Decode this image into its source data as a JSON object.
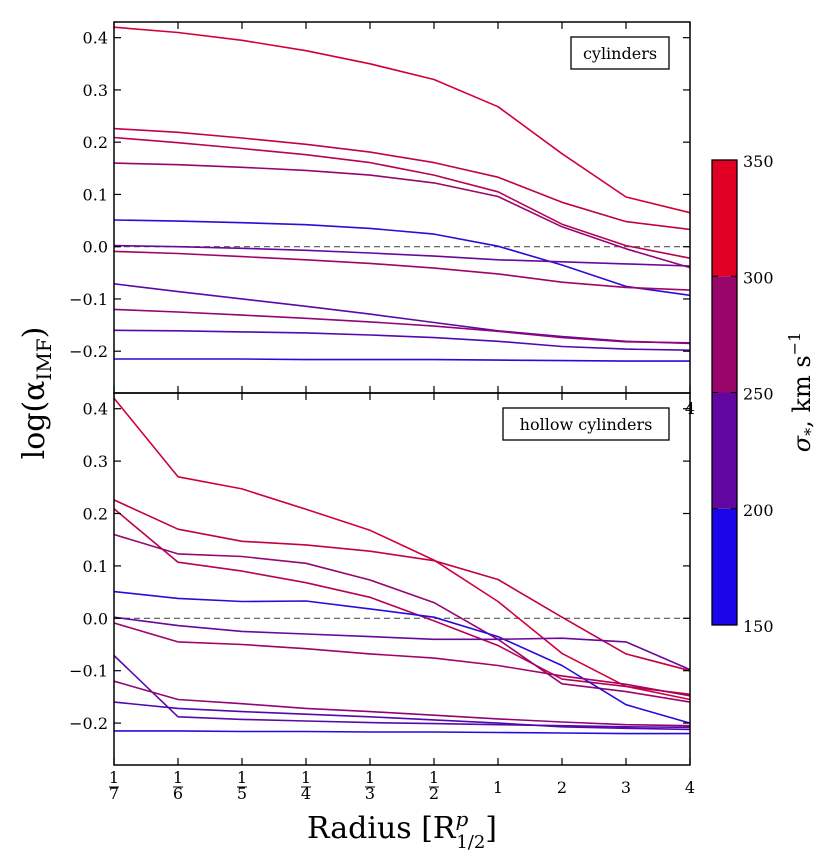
{
  "chart_data": [
    {
      "type": "line",
      "panel": "top",
      "legend_label": "cylinders",
      "legend_position": "top-right",
      "x_tick_labels": [
        "1/7",
        "1/6",
        "1/5",
        "1/4",
        "1/3",
        "1/2",
        "1",
        "2",
        "3",
        "4"
      ],
      "x_positions": [
        0,
        1,
        2,
        3,
        4,
        5,
        6,
        7,
        8,
        9
      ],
      "ylim": [
        -0.28,
        0.43
      ],
      "y_ticks": [
        -0.2,
        -0.1,
        0.0,
        0.1,
        0.2,
        0.3,
        0.4
      ],
      "y_tick_labels": [
        "−0.2",
        "−0.1",
        "0.0",
        "0.1",
        "0.2",
        "0.3",
        "0.4"
      ],
      "reference_line": 0.0,
      "series": [
        {
          "name": "sigma-335",
          "sigma": 335,
          "values": [
            0.42,
            0.41,
            0.395,
            0.375,
            0.35,
            0.32,
            0.268,
            0.178,
            0.095,
            0.065
          ]
        },
        {
          "name": "sigma-320",
          "sigma": 320,
          "values": [
            0.226,
            0.219,
            0.208,
            0.196,
            0.181,
            0.161,
            0.133,
            0.085,
            0.048,
            0.033
          ]
        },
        {
          "name": "sigma-310",
          "sigma": 310,
          "values": [
            0.209,
            0.199,
            0.188,
            0.176,
            0.161,
            0.137,
            0.105,
            0.043,
            0.002,
            -0.022
          ]
        },
        {
          "name": "sigma-275",
          "sigma": 275,
          "values": [
            0.16,
            0.157,
            0.152,
            0.146,
            0.137,
            0.122,
            0.096,
            0.038,
            -0.004,
            -0.04
          ]
        },
        {
          "name": "sigma-165",
          "sigma": 165,
          "values": [
            0.051,
            0.049,
            0.046,
            0.042,
            0.035,
            0.024,
            0.001,
            -0.035,
            -0.076,
            -0.093
          ]
        },
        {
          "name": "sigma-230",
          "sigma": 230,
          "values": [
            0.002,
            0.0,
            -0.003,
            -0.007,
            -0.012,
            -0.018,
            -0.025,
            -0.029,
            -0.033,
            -0.037
          ]
        },
        {
          "name": "sigma-285",
          "sigma": 285,
          "values": [
            -0.009,
            -0.013,
            -0.019,
            -0.025,
            -0.032,
            -0.041,
            -0.052,
            -0.068,
            -0.078,
            -0.083
          ]
        },
        {
          "name": "sigma-215",
          "sigma": 215,
          "values": [
            -0.071,
            -0.086,
            -0.1,
            -0.114,
            -0.129,
            -0.145,
            -0.161,
            -0.172,
            -0.181,
            -0.185
          ]
        },
        {
          "name": "sigma-270",
          "sigma": 270,
          "values": [
            -0.12,
            -0.125,
            -0.131,
            -0.137,
            -0.144,
            -0.152,
            -0.162,
            -0.174,
            -0.182,
            -0.184
          ]
        },
        {
          "name": "sigma-205",
          "sigma": 205,
          "values": [
            -0.16,
            -0.161,
            -0.163,
            -0.165,
            -0.169,
            -0.174,
            -0.181,
            -0.191,
            -0.196,
            -0.198
          ]
        },
        {
          "name": "sigma-160",
          "sigma": 160,
          "values": [
            -0.215,
            -0.215,
            -0.215,
            -0.216,
            -0.216,
            -0.216,
            -0.217,
            -0.218,
            -0.219,
            -0.219
          ]
        }
      ]
    },
    {
      "type": "line",
      "panel": "bottom",
      "legend_label": "hollow cylinders",
      "legend_position": "top-right",
      "x_tick_labels": [
        "1/7",
        "1/6",
        "1/5",
        "1/4",
        "1/3",
        "1/2",
        "1",
        "2",
        "3",
        "4"
      ],
      "x_positions": [
        0,
        1,
        2,
        3,
        4,
        5,
        6,
        7,
        8,
        9
      ],
      "ylim": [
        -0.28,
        0.43
      ],
      "y_ticks": [
        -0.2,
        -0.1,
        0.0,
        0.1,
        0.2,
        0.3,
        0.4
      ],
      "y_tick_labels": [
        "−0.2",
        "−0.1",
        "0.0",
        "0.1",
        "0.2",
        "0.3",
        "0.4"
      ],
      "reference_line": 0.0,
      "series": [
        {
          "name": "sigma-335",
          "sigma": 335,
          "values": [
            0.42,
            0.27,
            0.247,
            0.208,
            0.168,
            0.111,
            0.032,
            -0.067,
            -0.13,
            -0.155
          ]
        },
        {
          "name": "sigma-320",
          "sigma": 320,
          "values": [
            0.226,
            0.17,
            0.147,
            0.14,
            0.128,
            0.11,
            0.074,
            0.002,
            -0.068,
            -0.1
          ]
        },
        {
          "name": "sigma-310",
          "sigma": 310,
          "values": [
            0.209,
            0.107,
            0.09,
            0.068,
            0.04,
            -0.005,
            -0.052,
            -0.116,
            -0.13,
            -0.145
          ]
        },
        {
          "name": "sigma-275",
          "sigma": 275,
          "values": [
            0.16,
            0.123,
            0.118,
            0.105,
            0.073,
            0.03,
            -0.04,
            -0.125,
            -0.14,
            -0.16
          ]
        },
        {
          "name": "sigma-165",
          "sigma": 165,
          "values": [
            0.051,
            0.038,
            0.032,
            0.033,
            0.018,
            0.002,
            -0.035,
            -0.09,
            -0.165,
            -0.2
          ]
        },
        {
          "name": "sigma-230",
          "sigma": 230,
          "values": [
            0.002,
            -0.014,
            -0.025,
            -0.03,
            -0.035,
            -0.04,
            -0.04,
            -0.038,
            -0.045,
            -0.098
          ]
        },
        {
          "name": "sigma-285",
          "sigma": 285,
          "values": [
            -0.009,
            -0.045,
            -0.05,
            -0.058,
            -0.068,
            -0.076,
            -0.09,
            -0.11,
            -0.126,
            -0.148
          ]
        },
        {
          "name": "sigma-215",
          "sigma": 215,
          "values": [
            -0.071,
            -0.188,
            -0.193,
            -0.196,
            -0.199,
            -0.201,
            -0.203,
            -0.205,
            -0.207,
            -0.208
          ]
        },
        {
          "name": "sigma-270",
          "sigma": 270,
          "values": [
            -0.12,
            -0.155,
            -0.163,
            -0.172,
            -0.178,
            -0.185,
            -0.192,
            -0.198,
            -0.203,
            -0.205
          ]
        },
        {
          "name": "sigma-205",
          "sigma": 205,
          "values": [
            -0.16,
            -0.172,
            -0.178,
            -0.183,
            -0.188,
            -0.194,
            -0.2,
            -0.207,
            -0.21,
            -0.212
          ]
        },
        {
          "name": "sigma-160",
          "sigma": 160,
          "values": [
            -0.215,
            -0.215,
            -0.216,
            -0.216,
            -0.217,
            -0.217,
            -0.218,
            -0.219,
            -0.22,
            -0.22
          ]
        }
      ]
    }
  ],
  "axes": {
    "ylabel": "log(α",
    "ylabel_subscript": "IMF",
    "ylabel_close": ")",
    "xlabel": "Radius [R",
    "xlabel_superscript": "p",
    "xlabel_subscript": "1/2",
    "xlabel_close": "]",
    "stray_tick_label": "4"
  },
  "colorbar": {
    "label": "σ",
    "label_subscript": "*",
    "label_rest": ", km s",
    "label_superscript": "−1",
    "ticks": [
      150,
      200,
      250,
      300,
      350
    ],
    "tick_labels": [
      "150",
      "200",
      "250",
      "300",
      "350"
    ],
    "range": [
      150,
      350
    ],
    "segments": [
      {
        "from": 150,
        "to": 200,
        "color": "#1a06e8"
      },
      {
        "from": 200,
        "to": 250,
        "color": "#61069f"
      },
      {
        "from": 250,
        "to": 300,
        "color": "#9a0569"
      },
      {
        "from": 300,
        "to": 350,
        "color": "#e00023"
      }
    ]
  },
  "colors": {
    "low": "#1a0de6",
    "high": "#e0002a",
    "reference_line": "#555555"
  }
}
